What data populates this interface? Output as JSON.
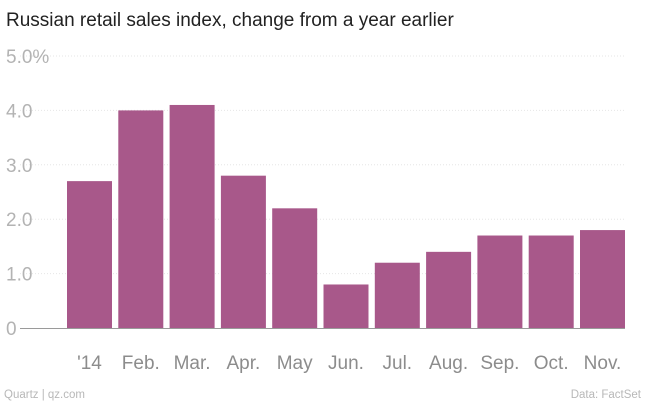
{
  "chart_data": {
    "type": "bar",
    "title": "Russian retail sales index, change from a year earlier",
    "categories": [
      "'14",
      "Feb.",
      "Mar.",
      "Apr.",
      "May",
      "Jun.",
      "Jul.",
      "Aug.",
      "Sep.",
      "Oct.",
      "Nov."
    ],
    "values": [
      2.7,
      4.0,
      4.1,
      2.8,
      2.2,
      0.8,
      1.2,
      1.4,
      1.7,
      1.7,
      1.8
    ],
    "ylim": [
      0,
      5
    ],
    "yticks": [
      {
        "value": 0,
        "label": "0"
      },
      {
        "value": 1,
        "label": "1.0"
      },
      {
        "value": 2,
        "label": "2.0"
      },
      {
        "value": 3,
        "label": "3.0"
      },
      {
        "value": 4,
        "label": "4.0"
      },
      {
        "value": 5,
        "label": "5.0%"
      }
    ],
    "grid": true,
    "legend": "none",
    "bar_color": "#a8588a"
  },
  "footer": {
    "source_left": "Quartz | qz.com",
    "source_right": "Data: FactSet"
  }
}
